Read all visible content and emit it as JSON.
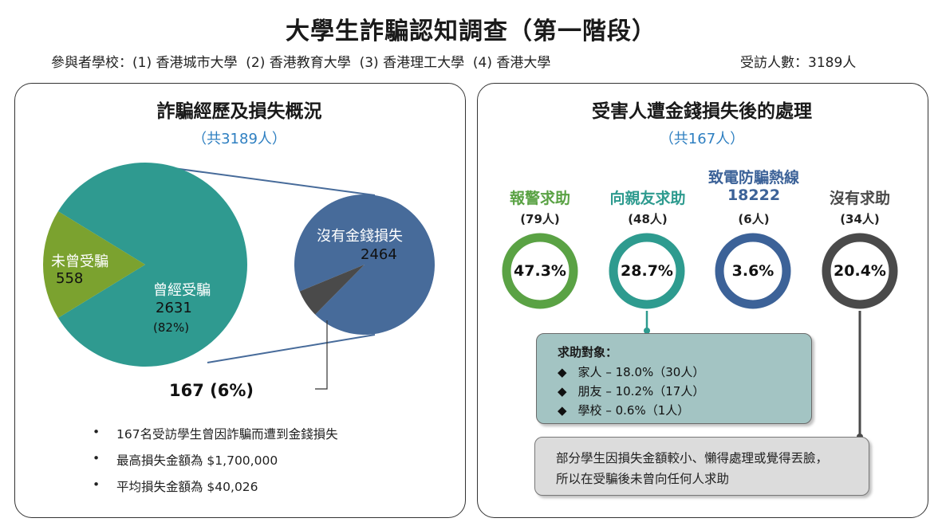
{
  "header": {
    "title": "大學生詐騙認知調查（第一階段）",
    "schools": "參與者學校：(1) 香港城市大學  (2) 香港教育大學  (3) 香港理工大學  (4) 香港大學",
    "respondents": "受訪人數：3189人"
  },
  "left_panel": {
    "title": "詐騙經歷及損失概況",
    "subtitle": "（共3189人）",
    "pie_main": {
      "not_victim_label": "未曾受騙",
      "not_victim_value": "558",
      "victim_label": "曾經受騙",
      "victim_value": "2631",
      "victim_pct": "(82%)"
    },
    "pie_detail": {
      "no_loss_label": "沒有金錢損失",
      "no_loss_value": "2464",
      "loss_label": "167 (6%)"
    },
    "bullets": [
      "167名受訪學生曾因詐騙而遭到金錢損失",
      "最高損失金額為 $1,700,000",
      "平均損失金額為 $40,026"
    ],
    "bullet_symbol": "•"
  },
  "right_panel": {
    "title": "受害人遭金錢損失後的處理",
    "subtitle": "（共167人）",
    "categories": [
      {
        "title": "報警求助",
        "count": "(79人)",
        "pct_label": "47.3%",
        "pct": 47.3,
        "color": "#5aa244"
      },
      {
        "title": "向親友求助",
        "count": "(48人)",
        "pct_label": "28.7%",
        "pct": 28.7,
        "color": "#2e9b8f"
      },
      {
        "title": "致電防騙熱線",
        "title2": "18222",
        "count": "(6人)",
        "pct_label": "3.6%",
        "pct": 3.6,
        "color": "#3c6298"
      },
      {
        "title": "沒有求助",
        "count": "(34人)",
        "pct_label": "20.4%",
        "pct": 20.4,
        "color": "#4a4a4a"
      }
    ],
    "support_box": {
      "title": "求助對象：",
      "rows": [
        "家人 – 18.0%（30人）",
        "朋友 – 10.2%（17人）",
        "學校 – 0.6%（1人）"
      ],
      "symbol": "◆"
    },
    "note": {
      "line1": "部分學生因損失金額較小、懶得處理或覺得丟臉，",
      "line2": "所以在受騙後未曾向任何人求助"
    }
  },
  "chart_data": [
    {
      "type": "pie",
      "title": "詐騙經歷及損失概況",
      "categories": [
        "曾經受騙",
        "未曾受騙"
      ],
      "values": [
        2631,
        558
      ],
      "colors": [
        "#2f9a90",
        "#7ba22f"
      ]
    },
    {
      "type": "pie",
      "categories": [
        "沒有金錢損失",
        "167 (6%)"
      ],
      "values": [
        2464,
        167
      ],
      "colors": [
        "#476b9a",
        "#4a4a4a"
      ]
    },
    {
      "type": "bar",
      "categories": [
        "報警求助",
        "向親友求助",
        "致電防騙熱線 18222",
        "沒有求助"
      ],
      "values": [
        47.3,
        28.7,
        3.6,
        20.4
      ],
      "counts": [
        79,
        48,
        6,
        34
      ]
    }
  ]
}
